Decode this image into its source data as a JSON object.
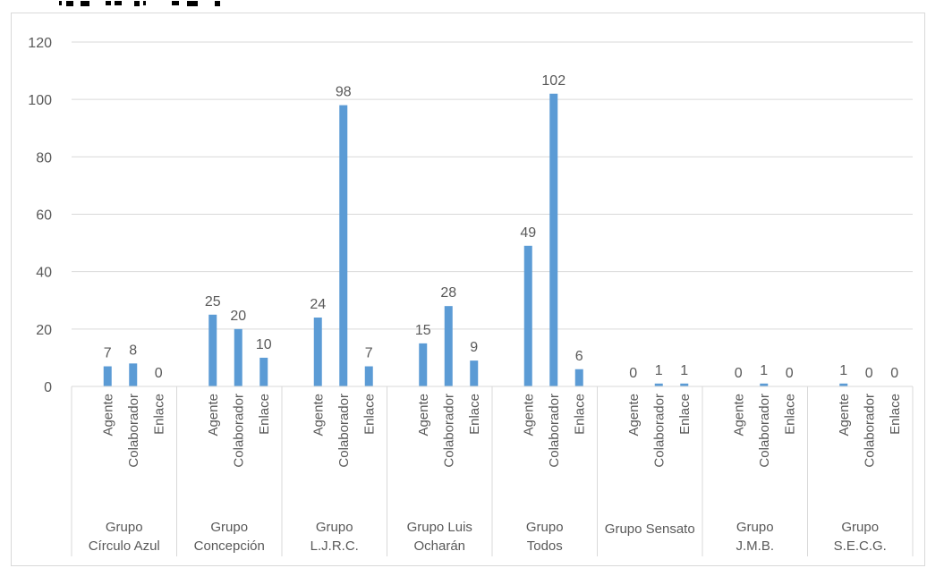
{
  "chart_data": {
    "type": "bar",
    "title": "",
    "xlabel": "",
    "ylabel": "",
    "ylim": [
      0,
      120
    ],
    "yticks": [
      0,
      20,
      40,
      60,
      80,
      100,
      120
    ],
    "grid": true,
    "legend": "none",
    "bar_color": "#5b9bd5",
    "groups": [
      {
        "label_lines": [
          "Grupo",
          "Círculo Azul"
        ],
        "categories": [
          "Agente",
          "Colaborador",
          "Enlace"
        ],
        "values": [
          7,
          8,
          0
        ]
      },
      {
        "label_lines": [
          "Grupo",
          "Concepción"
        ],
        "categories": [
          "Agente",
          "Colaborador",
          "Enlace"
        ],
        "values": [
          25,
          20,
          10
        ]
      },
      {
        "label_lines": [
          "Grupo",
          "L.J.R.C."
        ],
        "categories": [
          "Agente",
          "Colaborador",
          "Enlace"
        ],
        "values": [
          24,
          98,
          7
        ]
      },
      {
        "label_lines": [
          "Grupo Luis",
          "Ocharán"
        ],
        "categories": [
          "Agente",
          "Colaborador",
          "Enlace"
        ],
        "values": [
          15,
          28,
          9
        ]
      },
      {
        "label_lines": [
          "Grupo",
          "Todos"
        ],
        "categories": [
          "Agente",
          "Colaborador",
          "Enlace"
        ],
        "values": [
          49,
          102,
          6
        ]
      },
      {
        "label_lines": [
          "Grupo Sensato"
        ],
        "categories": [
          "Agente",
          "Colaborador",
          "Enlace"
        ],
        "values": [
          0,
          1,
          1
        ]
      },
      {
        "label_lines": [
          "Grupo",
          "J.M.B."
        ],
        "categories": [
          "Agente",
          "Colaborador",
          "Enlace"
        ],
        "values": [
          0,
          1,
          0
        ]
      },
      {
        "label_lines": [
          "Grupo",
          "S.E.C.G."
        ],
        "categories": [
          "Agente",
          "Colaborador",
          "Enlace"
        ],
        "values": [
          1,
          0,
          0
        ]
      }
    ]
  }
}
